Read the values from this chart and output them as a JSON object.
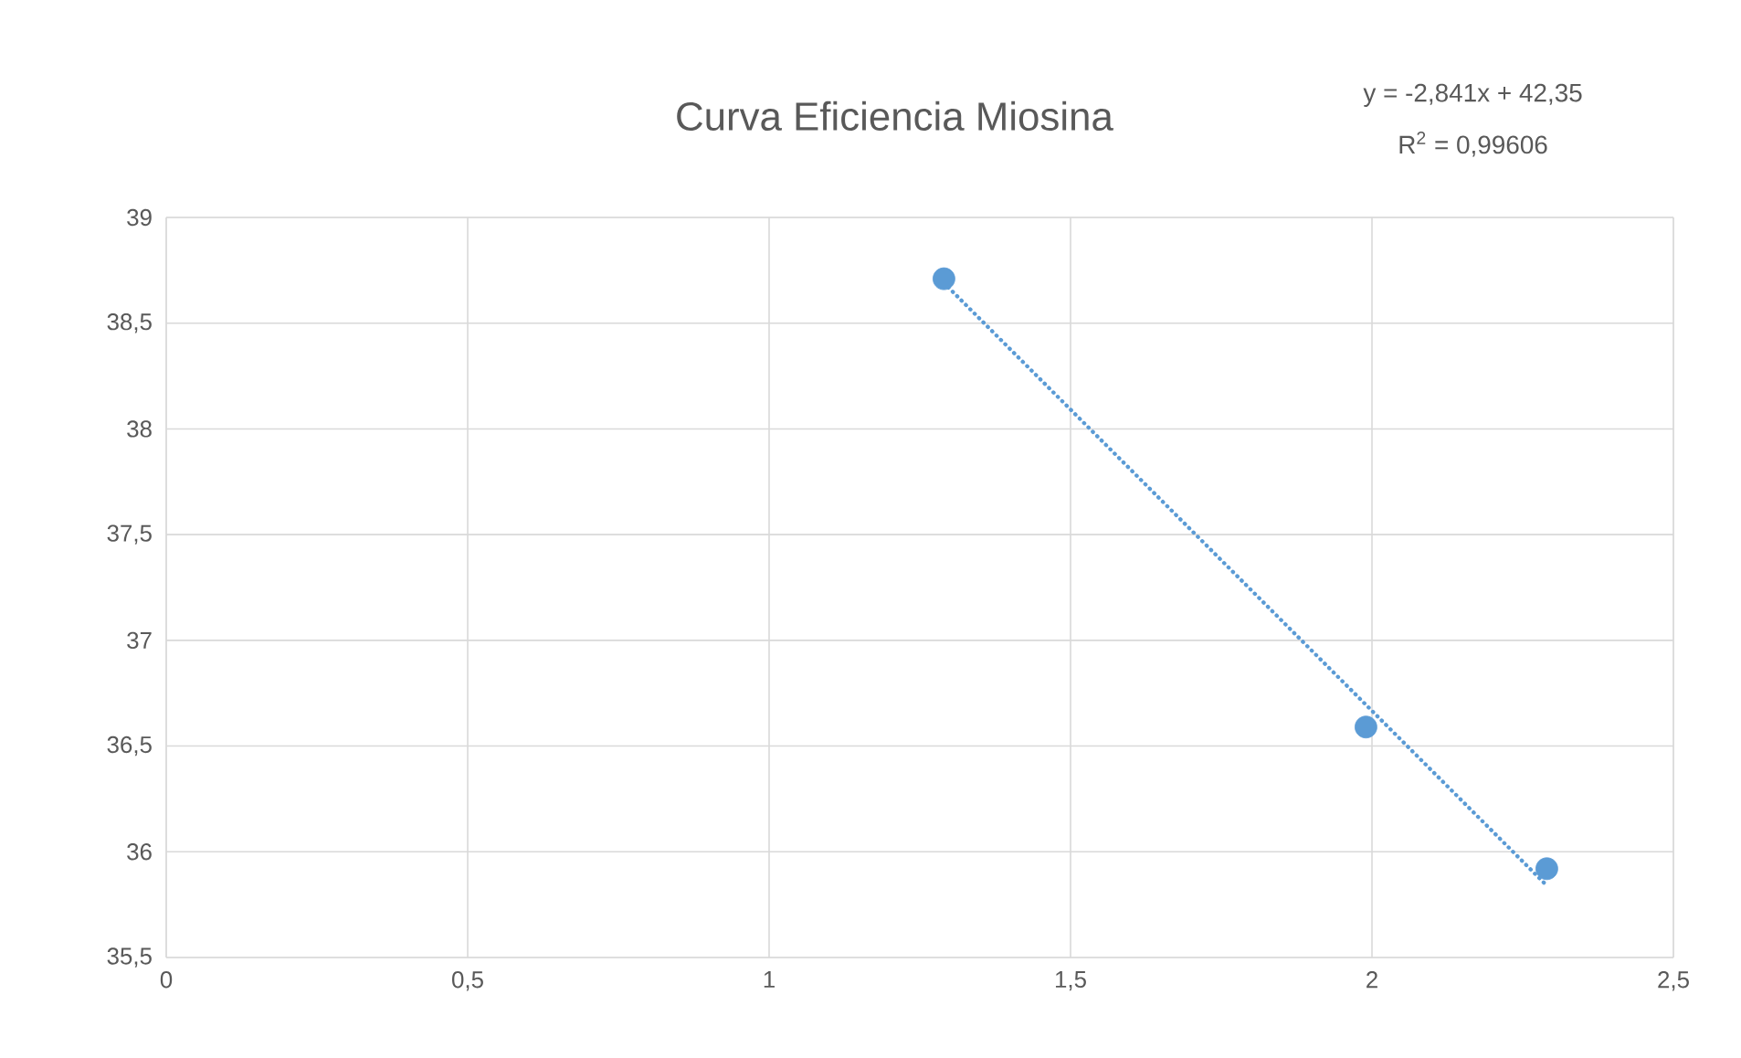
{
  "chart_data": {
    "type": "scatter",
    "title": "Curva Eficiencia Miosina",
    "annotations": [
      "y = -2,841x + 42,35",
      "R$^{2}$ = 0,99606"
    ],
    "series": [
      {
        "color": "#5b9bd5",
        "marker": "circle",
        "x": [
          1.29,
          1.99,
          2.29
        ],
        "values": [
          38.71,
          36.59,
          35.92
        ]
      },
      {
        "type": "line",
        "color": "#5b9bd5",
        "marker": "none",
        "line_style": "dotted",
        "x": [
          1.29,
          2.29
        ],
        "values": [
          38.69,
          35.84
        ]
      }
    ],
    "xlim": [
      0,
      2.5
    ],
    "ylim": [
      35.5,
      39
    ],
    "xticks": [
      0,
      {
        "value": 0.5,
        "label": "0,5"
      },
      1,
      {
        "value": 1.5,
        "label": "1,5"
      },
      2,
      {
        "value": 2.5,
        "label": "2,5"
      }
    ],
    "yticks": [
      {
        "value": 35.5,
        "label": "35,5"
      },
      36,
      {
        "value": 36.5,
        "label": "36,5"
      },
      37,
      {
        "value": 37.5,
        "label": "37,5"
      },
      38,
      {
        "value": 38.5,
        "label": "38,5"
      },
      39
    ],
    "grid": true
  }
}
